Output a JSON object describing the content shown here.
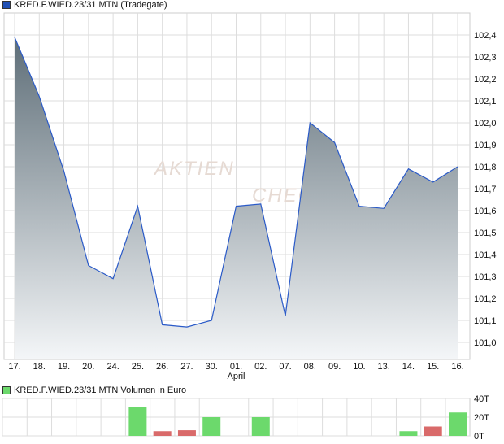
{
  "chart_data": [
    {
      "type": "area",
      "title": "KRED.F.WIED.23/31 MTN (Tradegate)",
      "categories": [
        "17.",
        "18.",
        "19.",
        "20.",
        "24.",
        "25.",
        "26.",
        "27.",
        "30.",
        "01.",
        "02.",
        "07.",
        "08.",
        "09.",
        "10.",
        "13.",
        "14.",
        "15.",
        "16."
      ],
      "x_sublabel": "April",
      "values": [
        102.39,
        102.12,
        101.78,
        101.35,
        101.29,
        101.62,
        101.08,
        101.07,
        101.1,
        101.62,
        101.63,
        101.12,
        102.0,
        101.91,
        101.62,
        101.61,
        101.79,
        101.73,
        101.8
      ],
      "yticks": [
        "102,4",
        "102,3",
        "102,2",
        "102,1",
        "102,0",
        "101,9",
        "101,8",
        "101,7",
        "101,6",
        "101,5",
        "101,4",
        "101,3",
        "101,2",
        "101,1",
        "101,0"
      ],
      "ylim": [
        101.0,
        102.4
      ],
      "grid": true,
      "line_color": "#2a5ac8",
      "fill_top_color": "#5e6e78",
      "fill_bottom_color": "#f4f6f8",
      "legend_color": "#1f4fb4",
      "watermark": "AKTIEN CHECK"
    },
    {
      "type": "bar",
      "title": "KRED.F.WIED.23/31 MTN Volumen in Euro",
      "categories": [
        "17.",
        "18.",
        "19.",
        "20.",
        "24.",
        "25.",
        "26.",
        "27.",
        "30.",
        "01.",
        "02.",
        "07.",
        "08.",
        "09.",
        "10.",
        "13.",
        "14.",
        "15.",
        "16."
      ],
      "values": [
        0,
        0,
        0,
        0,
        0,
        31,
        5,
        6,
        20,
        0,
        20,
        0,
        0,
        0,
        0,
        0,
        5,
        10,
        25
      ],
      "direction": [
        "",
        "",
        "",
        "",
        "",
        "up",
        "down",
        "down",
        "up",
        "",
        "up",
        "",
        "",
        "",
        "",
        "",
        "up",
        "down",
        "up"
      ],
      "yticks": [
        "40T",
        "20T",
        "0T"
      ],
      "ylim": [
        0,
        40
      ],
      "unit": "T",
      "up_color": "#6cd96c",
      "down_color": "#d96a6a",
      "grid": true
    }
  ]
}
